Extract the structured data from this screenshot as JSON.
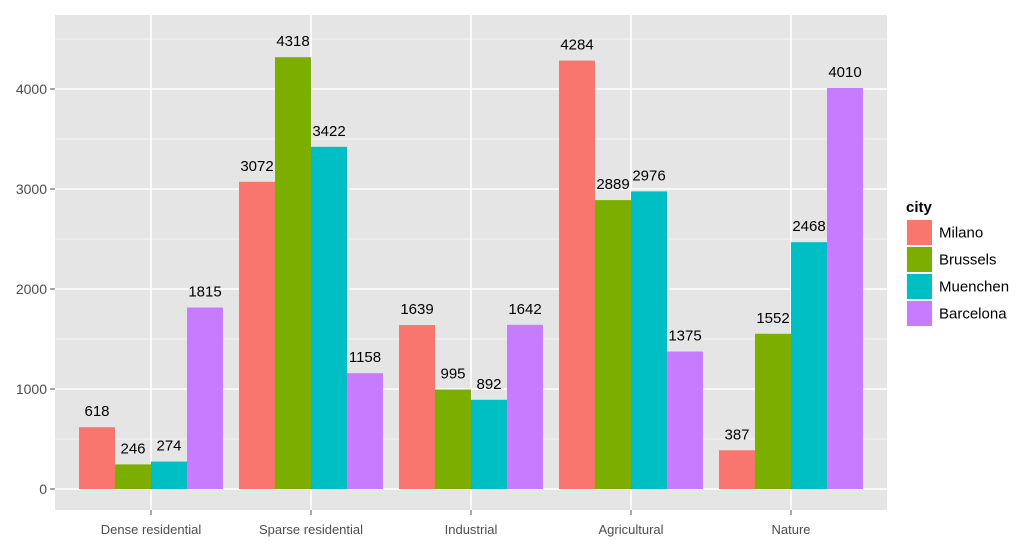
{
  "chart_data": {
    "type": "bar",
    "title": "",
    "xlabel": "",
    "ylabel": "",
    "ylim": [
      0,
      4550
    ],
    "yticks": [
      0,
      1000,
      2000,
      3000,
      4000
    ],
    "categories": [
      "Dense residential",
      "Sparse residential",
      "Industrial",
      "Agricultural",
      "Nature"
    ],
    "legend_title": "city",
    "legend_position": "right",
    "grid": true,
    "series": [
      {
        "name": "Milano",
        "color": "#F8766D",
        "values": [
          618,
          3072,
          1639,
          4284,
          387
        ]
      },
      {
        "name": "Brussels",
        "color": "#7CAE00",
        "values": [
          246,
          4318,
          995,
          2889,
          1552
        ]
      },
      {
        "name": "Muenchen",
        "color": "#00BFC4",
        "values": [
          274,
          3422,
          892,
          2976,
          2468
        ]
      },
      {
        "name": "Barcelona",
        "color": "#C77CFF",
        "values": [
          1815,
          1158,
          1642,
          1375,
          4010
        ]
      }
    ]
  }
}
